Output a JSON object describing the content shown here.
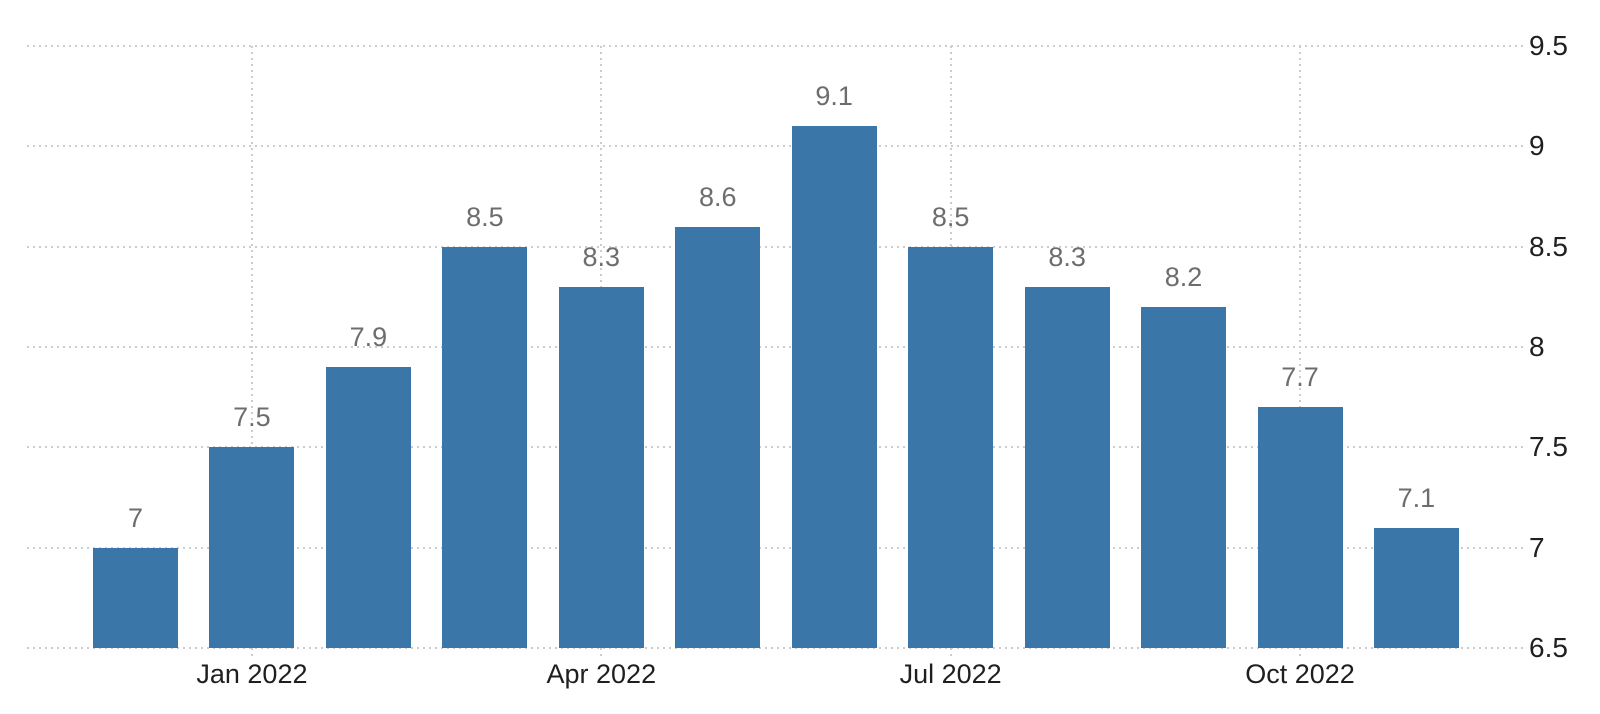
{
  "chart_data": {
    "type": "bar",
    "title": "",
    "values": [
      7,
      7.5,
      7.9,
      8.5,
      8.3,
      8.6,
      9.1,
      8.5,
      8.3,
      8.2,
      7.7,
      7.1
    ],
    "bar_labels": [
      "7",
      "7.5",
      "7.9",
      "8.5",
      "8.3",
      "8.6",
      "9.1",
      "8.5",
      "8.3",
      "8.2",
      "7.7",
      "7.1"
    ],
    "x_tick_labels": [
      {
        "label": "Jan 2022",
        "bar_index": 1
      },
      {
        "label": "Apr 2022",
        "bar_index": 4
      },
      {
        "label": "Jul 2022",
        "bar_index": 7
      },
      {
        "label": "Oct 2022",
        "bar_index": 10
      }
    ],
    "y_ticks": [
      {
        "value": 9.5,
        "label": "9.5"
      },
      {
        "value": 9,
        "label": "9"
      },
      {
        "value": 8.5,
        "label": "8.5"
      },
      {
        "value": 8,
        "label": "8"
      },
      {
        "value": 7.5,
        "label": "7.5"
      },
      {
        "value": 7,
        "label": "7"
      },
      {
        "value": 6.5,
        "label": "6.5"
      }
    ],
    "ylim": [
      6.5,
      9.5
    ],
    "xlabel": "",
    "ylabel": "",
    "grid": "dotted",
    "legend": "none",
    "y_axis_position": "right",
    "colors": {
      "bar": "#3b76a8",
      "grid": "#cccccc",
      "value_label": "#6d6d6d",
      "axis_label": "#1f1f1f",
      "background": "#ffffff"
    }
  }
}
